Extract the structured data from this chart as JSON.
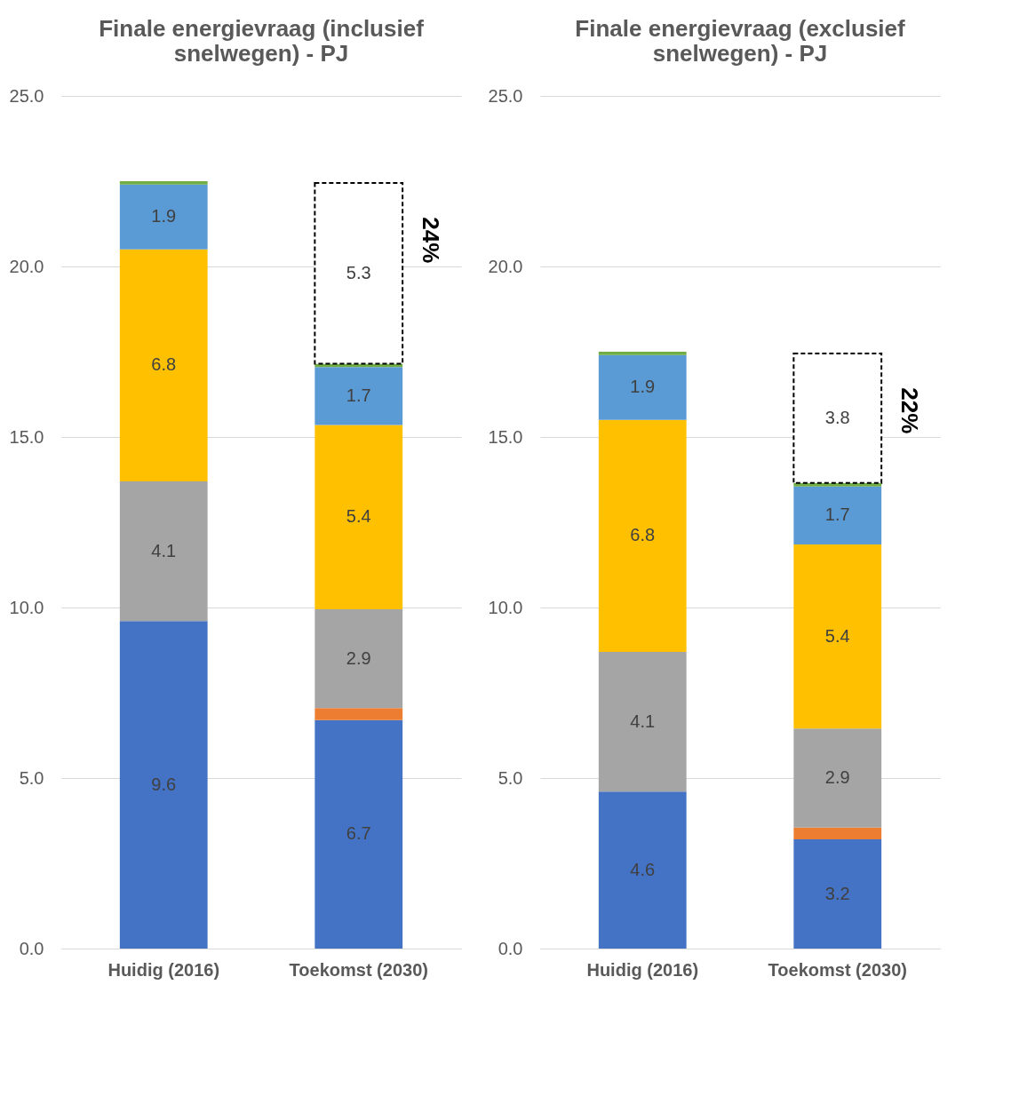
{
  "chart_data": [
    {
      "type": "bar",
      "stacked": true,
      "title": "Finale energievraag (inclusief snelwegen) - PJ",
      "categories": [
        "Huidig (2016)",
        "Toekomst (2030)"
      ],
      "series": [
        {
          "color": "#4472c4",
          "values": [
            9.6,
            6.7
          ],
          "value_labels": [
            "9.6",
            "6.7"
          ]
        },
        {
          "color": "#ed7d31",
          "values": [
            0,
            0.35
          ],
          "value_labels": [
            null,
            null
          ]
        },
        {
          "color": "#a5a5a5",
          "values": [
            4.1,
            2.9
          ],
          "value_labels": [
            "4.1",
            "2.9"
          ]
        },
        {
          "color": "#ffc000",
          "values": [
            6.8,
            5.4
          ],
          "value_labels": [
            "6.8",
            "5.4"
          ]
        },
        {
          "color": "#5b9bd5",
          "values": [
            1.9,
            1.7
          ],
          "value_labels": [
            "1.9",
            "1.7"
          ]
        },
        {
          "color": "#70ad47",
          "values": [
            0.1,
            0.1
          ],
          "value_labels": [
            null,
            null
          ]
        },
        {
          "color": "#ffffff",
          "line_style": "dashed",
          "values": [
            null,
            5.3
          ],
          "value_labels": [
            null,
            "5.3"
          ]
        }
      ],
      "annotations": [
        "24%"
      ],
      "ylim": [
        0,
        25
      ],
      "yticks": [
        {
          "value": 0,
          "label": "0.0"
        },
        {
          "value": 5,
          "label": "5.0"
        },
        {
          "value": 10,
          "label": "10.0"
        },
        {
          "value": 15,
          "label": "15.0"
        },
        {
          "value": 20,
          "label": "20.0"
        },
        {
          "value": 25,
          "label": "25.0"
        }
      ],
      "grid": "y",
      "legend": false
    },
    {
      "type": "bar",
      "stacked": true,
      "title": "Finale energievraag (exclusief snelwegen) - PJ",
      "categories": [
        "Huidig (2016)",
        "Toekomst (2030)"
      ],
      "series": [
        {
          "color": "#4472c4",
          "values": [
            4.6,
            3.2
          ],
          "value_labels": [
            "4.6",
            "3.2"
          ]
        },
        {
          "color": "#ed7d31",
          "values": [
            0,
            0.35
          ],
          "value_labels": [
            null,
            null
          ]
        },
        {
          "color": "#a5a5a5",
          "values": [
            4.1,
            2.9
          ],
          "value_labels": [
            "4.1",
            "2.9"
          ]
        },
        {
          "color": "#ffc000",
          "values": [
            6.8,
            5.4
          ],
          "value_labels": [
            "6.8",
            "5.4"
          ]
        },
        {
          "color": "#5b9bd5",
          "values": [
            1.9,
            1.7
          ],
          "value_labels": [
            "1.9",
            "1.7"
          ]
        },
        {
          "color": "#70ad47",
          "values": [
            0.1,
            0.1
          ],
          "value_labels": [
            null,
            null
          ]
        },
        {
          "color": "#ffffff",
          "line_style": "dashed",
          "values": [
            null,
            3.8
          ],
          "value_labels": [
            null,
            "3.8"
          ]
        }
      ],
      "annotations": [
        "22%"
      ],
      "ylim": [
        0,
        25
      ],
      "yticks": [
        {
          "value": 0,
          "label": "0.0"
        },
        {
          "value": 5,
          "label": "5.0"
        },
        {
          "value": 10,
          "label": "10.0"
        },
        {
          "value": 15,
          "label": "15.0"
        },
        {
          "value": 20,
          "label": "20.0"
        },
        {
          "value": 25,
          "label": "25.0"
        }
      ],
      "grid": "y",
      "legend": false
    }
  ]
}
